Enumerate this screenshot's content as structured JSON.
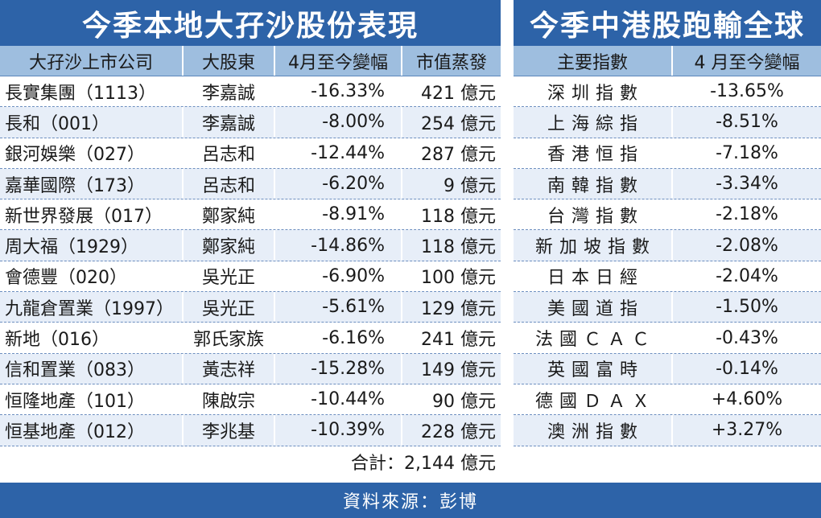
{
  "left": {
    "title": "今季本地大孖沙股份表現",
    "headers": [
      "大孖沙上市公司",
      "大股東",
      "4月至今變幅",
      "市值蒸發"
    ],
    "rows": [
      {
        "company": "長實集團（1113）",
        "holder": "李嘉誠",
        "change": "-16.33%",
        "loss": "421 億元"
      },
      {
        "company": "長和（001）",
        "holder": "李嘉誠",
        "change": "-8.00%",
        "loss": "254 億元"
      },
      {
        "company": "銀河娛樂（027）",
        "holder": "呂志和",
        "change": "-12.44%",
        "loss": "287 億元"
      },
      {
        "company": "嘉華國際（173）",
        "holder": "呂志和",
        "change": "-6.20%",
        "loss": "9 億元"
      },
      {
        "company": "新世界發展（017）",
        "holder": "鄭家純",
        "change": "-8.91%",
        "loss": "118 億元"
      },
      {
        "company": "周大福（1929）",
        "holder": "鄭家純",
        "change": "-14.86%",
        "loss": "118 億元"
      },
      {
        "company": "會德豐（020）",
        "holder": "吳光正",
        "change": "-6.90%",
        "loss": "100 億元"
      },
      {
        "company": "九龍倉置業（1997）",
        "holder": "吳光正",
        "change": "-5.61%",
        "loss": "129 億元"
      },
      {
        "company": "新地（016）",
        "holder": "郭氏家族",
        "change": "-6.16%",
        "loss": "241 億元"
      },
      {
        "company": "信和置業（083）",
        "holder": "黃志祥",
        "change": "-15.28%",
        "loss": "149 億元"
      },
      {
        "company": "恒隆地產（101）",
        "holder": "陳啟宗",
        "change": "-10.44%",
        "loss": "90 億元"
      },
      {
        "company": "恒基地產（012）",
        "holder": "李兆基",
        "change": "-10.39%",
        "loss": "228 億元"
      }
    ],
    "total": "合計：2,144 億元"
  },
  "right": {
    "title": "今季中港股跑輸全球",
    "headers": [
      "主要指數",
      "4 月至今變幅"
    ],
    "rows": [
      {
        "index": "深圳指數",
        "change": "-13.65%"
      },
      {
        "index": "上海綜指",
        "change": "-8.51%"
      },
      {
        "index": "香港恒指",
        "change": "-7.18%"
      },
      {
        "index": "南韓指數",
        "change": "-3.34%"
      },
      {
        "index": "台灣指數",
        "change": "-2.18%"
      },
      {
        "index": "新加坡指數",
        "change": "-2.08%"
      },
      {
        "index": "日本日經",
        "change": "-2.04%"
      },
      {
        "index": "美國道指",
        "change": "-1.50%"
      },
      {
        "index": "法國ＣＡＣ",
        "change": "-0.43%"
      },
      {
        "index": "英國富時",
        "change": "-0.14%"
      },
      {
        "index": "德國ＤＡＸ",
        "change": "+4.60%"
      },
      {
        "index": "澳洲指數",
        "change": "+3.27%"
      }
    ]
  },
  "source": "資料來源：彭博",
  "colors": {
    "title_bg": "#2d63a8",
    "header_bg": "#9ebedf",
    "alt_row": "#e7eef8"
  }
}
